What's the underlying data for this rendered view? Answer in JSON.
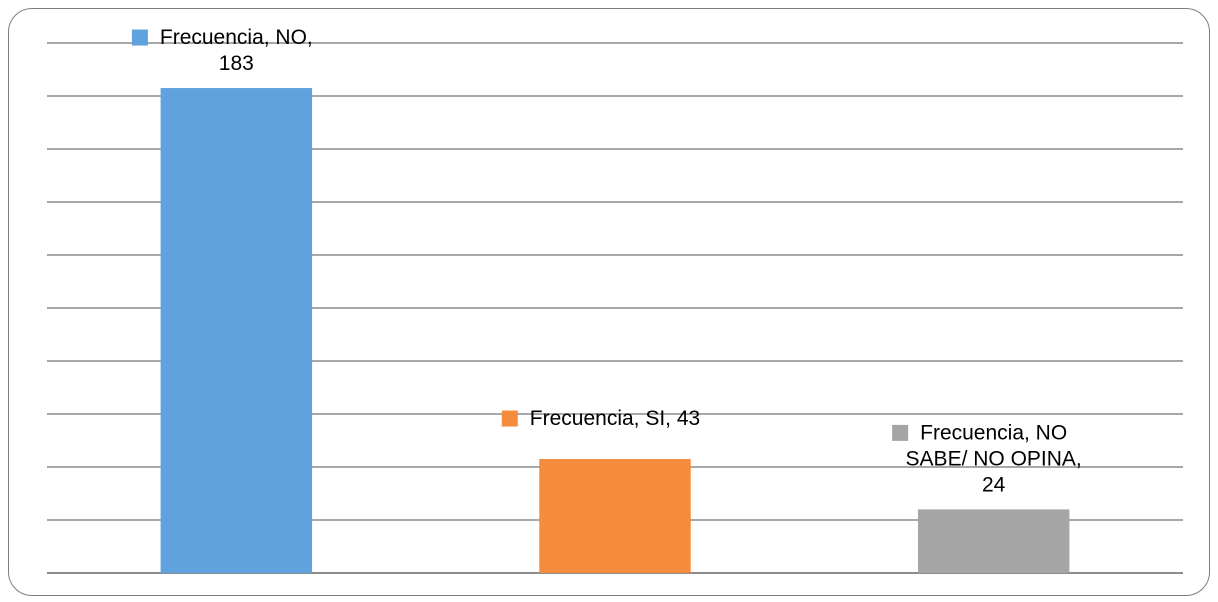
{
  "chart_data": {
    "type": "bar",
    "categories": [
      "NO",
      "SI",
      "NO SABE/ NO OPINA"
    ],
    "series": [
      {
        "name": "Frecuencia",
        "values": [
          183,
          43,
          24
        ],
        "colors": [
          "#5fa2dd",
          "#f58b3c",
          "#a5a5a5"
        ]
      }
    ],
    "data_labels": [
      [
        "Frecuencia, NO,",
        "183"
      ],
      [
        "Frecuencia, SI, 43"
      ],
      [
        "Frecuencia, NO",
        "SABE/ NO OPINA,",
        "24"
      ]
    ],
    "ylim": [
      0,
      200
    ],
    "grid": true,
    "gridline_step": 20,
    "title": "",
    "xlabel": "",
    "ylabel": ""
  }
}
